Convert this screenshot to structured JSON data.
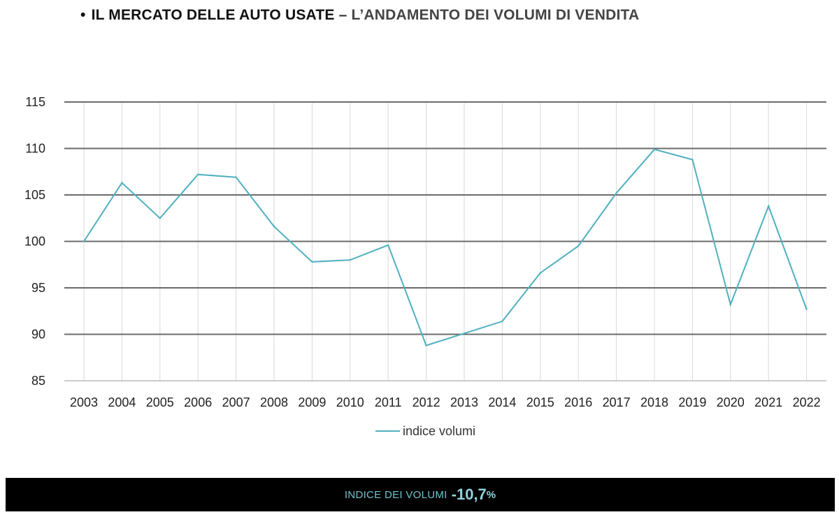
{
  "header": {
    "bullet": "•",
    "title_main": "IL MERCATO DELLE AUTO USATE",
    "separator": "–",
    "title_sub": "L’ANDAMENTO DEI VOLUMI DI VENDITA"
  },
  "footer": {
    "label": "INDICE DEI VOLUMI",
    "value": "-10,7",
    "unit": "%"
  },
  "colors": {
    "series": "#4fb0bf",
    "grid": "#6b6b6b",
    "vgrid": "#d9d9d9",
    "footer_bg": "#000000"
  },
  "chart_data": {
    "type": "line",
    "title": "",
    "xlabel": "",
    "ylabel": "",
    "categories": [
      "2003",
      "2004",
      "2005",
      "2006",
      "2007",
      "2008",
      "2009",
      "2010",
      "2011",
      "2012",
      "2013",
      "2014",
      "2015",
      "2016",
      "2017",
      "2018",
      "2019",
      "2020",
      "2021",
      "2022"
    ],
    "ylim": [
      85,
      115
    ],
    "yticks": [
      85,
      90,
      95,
      100,
      105,
      110,
      115
    ],
    "grid": true,
    "legend": "bottom-center",
    "series": [
      {
        "name": "indice volumi",
        "values": [
          100,
          106.3,
          102.5,
          107.2,
          106.9,
          101.6,
          97.8,
          98.0,
          99.6,
          88.8,
          90.1,
          91.4,
          96.6,
          99.5,
          105.2,
          109.9,
          108.8,
          93.2,
          103.8,
          92.7
        ]
      }
    ]
  }
}
